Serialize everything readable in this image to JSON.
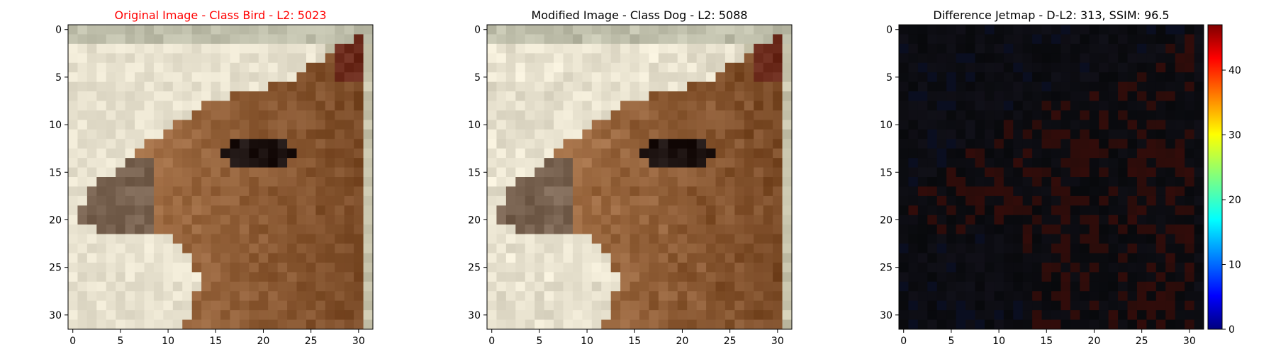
{
  "panels": [
    {
      "id": "original",
      "title": "Original Image - Class Bird - L2: 5023",
      "title_color": "#ff0000",
      "kind": "image",
      "subject": "pixelated photo of a deer head in profile facing left, brown fur, dark eye, pale background"
    },
    {
      "id": "modified",
      "title": "Modified Image - Class Dog - L2: 5088",
      "title_color": "#000000",
      "kind": "image",
      "subject": "adversarially perturbed copy of the same deer head photo"
    },
    {
      "id": "difference",
      "title": "Difference Jetmap - D-L2: 313, SSIM: 96.5",
      "title_color": "#000000",
      "kind": "jetmap",
      "subject": "mostly black difference heatmap with faint dark blue and red traces of the deer outline"
    }
  ],
  "axes": {
    "x_ticks": [
      "0",
      "5",
      "10",
      "15",
      "20",
      "25",
      "30"
    ],
    "y_ticks": [
      "0",
      "5",
      "10",
      "15",
      "20",
      "25",
      "30"
    ],
    "range": [
      0,
      31
    ]
  },
  "colorbar": {
    "colormap": "jet",
    "min": 0,
    "max": 47,
    "ticks": [
      "0",
      "10",
      "20",
      "30",
      "40"
    ]
  },
  "colors": {
    "background_light": "#e8e2cf",
    "fur_light": "#a8744a",
    "fur_dark": "#7a4a26",
    "eye": "#1c1210",
    "diff_base": "#0a0c10"
  }
}
